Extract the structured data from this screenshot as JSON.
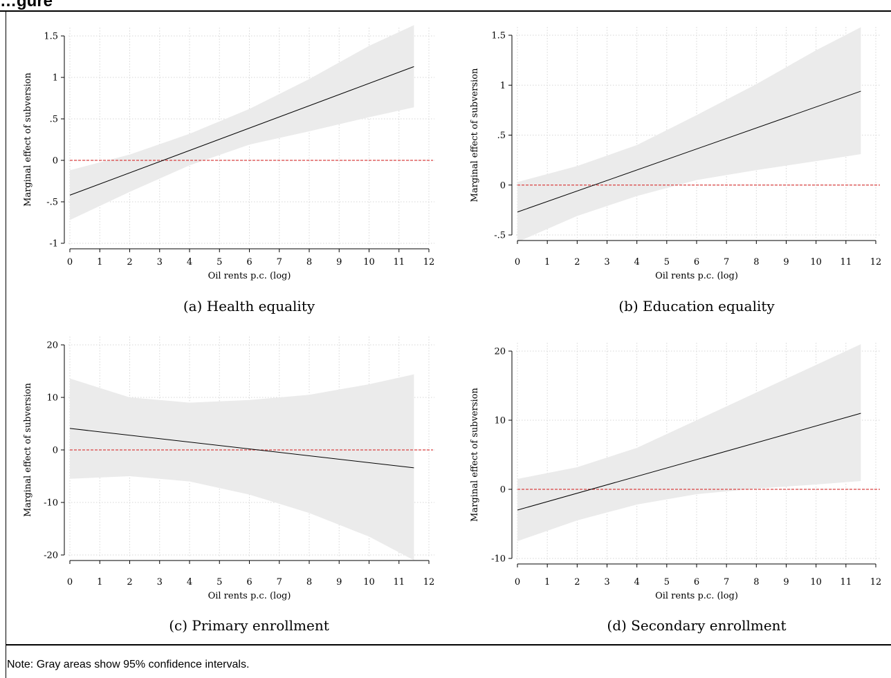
{
  "page": {
    "title": "…gure",
    "note": "Note: Gray areas show 95% confidence intervals."
  },
  "colors": {
    "band": "#ebebeb",
    "line": "#000000",
    "zero_line": "#d94040",
    "grid": "#d6d6d6"
  },
  "chart_data": [
    {
      "type": "line",
      "caption": "(a) Health equality",
      "xlabel": "Oil rents p.c. (log)",
      "ylabel": "Marginal effect of subversion",
      "xlim": [
        0,
        12
      ],
      "ylim": [
        -1,
        1.5
      ],
      "xticks": [
        0,
        1,
        2,
        3,
        4,
        5,
        6,
        7,
        8,
        9,
        10,
        11,
        12
      ],
      "yticks": [
        -1,
        -0.5,
        0,
        0.5,
        1,
        1.5
      ],
      "yticklabels": [
        "-1",
        "-.5",
        "0",
        ".5",
        "1",
        "1.5"
      ],
      "x": [
        0,
        11.5
      ],
      "y": [
        -0.42,
        1.13
      ],
      "ci_x": [
        0,
        2,
        4,
        6,
        8,
        10,
        11.5
      ],
      "ci_lower": [
        -0.72,
        -0.38,
        -0.06,
        0.19,
        0.35,
        0.52,
        0.64
      ],
      "ci_upper": [
        -0.12,
        0.07,
        0.32,
        0.62,
        0.98,
        1.38,
        1.63
      ],
      "reference_line": 0
    },
    {
      "type": "line",
      "caption": "(b) Education equality",
      "xlabel": "Oil rents p.c. (log)",
      "ylabel": "Marginal effect of subversion",
      "xlim": [
        0,
        12
      ],
      "ylim": [
        -0.5,
        1.5
      ],
      "xticks": [
        0,
        1,
        2,
        3,
        4,
        5,
        6,
        7,
        8,
        9,
        10,
        11,
        12
      ],
      "yticks": [
        -0.5,
        0,
        0.5,
        1,
        1.5
      ],
      "yticklabels": [
        "-.5",
        "0",
        ".5",
        "1",
        "1.5"
      ],
      "x": [
        0,
        11.5
      ],
      "y": [
        -0.27,
        0.94
      ],
      "ci_x": [
        0,
        2,
        4,
        6,
        8,
        10,
        11.5
      ],
      "ci_lower": [
        -0.57,
        -0.31,
        -0.11,
        0.05,
        0.15,
        0.24,
        0.31
      ],
      "ci_upper": [
        0.03,
        0.19,
        0.4,
        0.7,
        1.01,
        1.35,
        1.58
      ],
      "reference_line": 0
    },
    {
      "type": "line",
      "caption": "(c) Primary enrollment",
      "xlabel": "Oil rents p.c. (log)",
      "ylabel": "Marginal effect of subversion",
      "xlim": [
        0,
        12
      ],
      "ylim": [
        -20,
        20
      ],
      "xticks": [
        0,
        1,
        2,
        3,
        4,
        5,
        6,
        7,
        8,
        9,
        10,
        11,
        12
      ],
      "yticks": [
        -20,
        -10,
        0,
        10,
        20
      ],
      "yticklabels": [
        "-20",
        "-10",
        "0",
        "10",
        "20"
      ],
      "x": [
        0,
        11.5
      ],
      "y": [
        4.1,
        -3.4
      ],
      "ci_x": [
        0,
        2,
        4,
        6,
        8,
        10,
        11.5
      ],
      "ci_lower": [
        -5.5,
        -5.0,
        -6.0,
        -8.5,
        -12.0,
        -16.5,
        -21.0
      ],
      "ci_upper": [
        13.6,
        10.0,
        9.0,
        9.5,
        10.5,
        12.5,
        14.4
      ],
      "reference_line": 0
    },
    {
      "type": "line",
      "caption": "(d) Secondary enrollment",
      "xlabel": "Oil rents p.c. (log)",
      "ylabel": "Marginal effect of subversion",
      "xlim": [
        0,
        12
      ],
      "ylim": [
        -10,
        20
      ],
      "xticks": [
        0,
        1,
        2,
        3,
        4,
        5,
        6,
        7,
        8,
        9,
        10,
        11,
        12
      ],
      "yticks": [
        -10,
        0,
        10,
        20
      ],
      "yticklabels": [
        "-10",
        "0",
        "10",
        "20"
      ],
      "x": [
        0,
        11.5
      ],
      "y": [
        -3.0,
        11.0
      ],
      "ci_x": [
        0,
        2,
        4,
        6,
        8,
        10,
        11.5
      ],
      "ci_lower": [
        -7.5,
        -4.5,
        -2.2,
        -0.7,
        0.1,
        0.7,
        1.2
      ],
      "ci_upper": [
        1.5,
        3.2,
        6.0,
        10.0,
        14.0,
        18.0,
        21.0
      ],
      "reference_line": 0
    }
  ]
}
